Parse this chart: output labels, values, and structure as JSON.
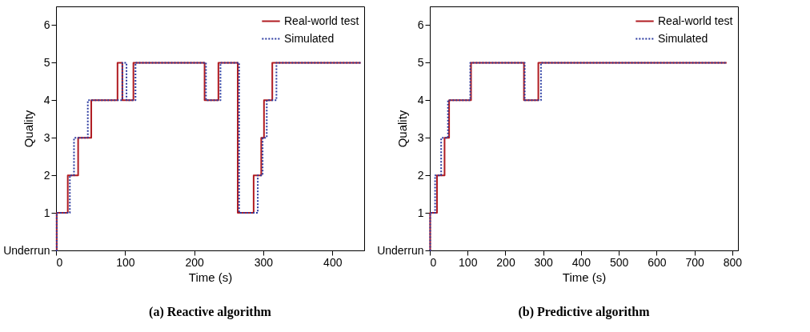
{
  "chart_data": [
    {
      "type": "step",
      "title": "(a) Reactive algorithm",
      "xlabel": "Time (s)",
      "ylabel": "Quality",
      "xlim": [
        0,
        446
      ],
      "xticks": [
        0,
        100,
        200,
        300,
        400
      ],
      "ylim": [
        0,
        6.5
      ],
      "yticks": [
        {
          "value": 0,
          "label": "Underrun"
        },
        1,
        2,
        3,
        4,
        5,
        6
      ],
      "grid": false,
      "legend": "top right",
      "marker": "none",
      "series": [
        {
          "name": "Real-world test",
          "color": "#b01c22",
          "line_style": "solid",
          "x": [
            0,
            1,
            17,
            32,
            51,
            89,
            96,
            112,
            215,
            235,
            263,
            286,
            297,
            301,
            313,
            441
          ],
          "values": [
            0,
            1,
            2,
            3,
            4,
            5,
            4,
            5,
            4,
            5,
            1,
            2,
            3,
            4,
            5,
            5
          ]
        },
        {
          "name": "Simulated",
          "color": "#2b3aa0",
          "line_style": "dotted",
          "x": [
            0,
            1,
            20,
            26,
            46,
            96,
            102,
            115,
            217,
            238,
            265,
            292,
            299,
            305,
            319,
            441
          ],
          "values": [
            0,
            1,
            2,
            3,
            4,
            5,
            4,
            5,
            4,
            5,
            1,
            2,
            3,
            4,
            5,
            5
          ]
        }
      ]
    },
    {
      "type": "step",
      "title": "(b) Predictive algorithm",
      "xlabel": "Time (s)",
      "ylabel": "Quality",
      "xlim": [
        0,
        815
      ],
      "xticks": [
        0,
        100,
        200,
        300,
        400,
        500,
        600,
        700,
        800
      ],
      "ylim": [
        0,
        6.5
      ],
      "yticks": [
        {
          "value": 0,
          "label": "Underrun"
        },
        1,
        2,
        3,
        4,
        5,
        6
      ],
      "grid": false,
      "legend": "top right",
      "marker": "none",
      "series": [
        {
          "name": "Real-world test",
          "color": "#b01c22",
          "line_style": "solid",
          "x": [
            0,
            1,
            19,
            39,
            51,
            109,
            249,
            287,
            785
          ],
          "values": [
            0,
            1,
            2,
            3,
            4,
            5,
            4,
            5,
            5
          ]
        },
        {
          "name": "Simulated",
          "color": "#2b3aa0",
          "line_style": "dotted",
          "x": [
            0,
            1,
            14,
            30,
            48,
            107,
            251,
            294,
            785
          ],
          "values": [
            0,
            1,
            2,
            3,
            4,
            5,
            4,
            5,
            5
          ]
        }
      ]
    }
  ]
}
